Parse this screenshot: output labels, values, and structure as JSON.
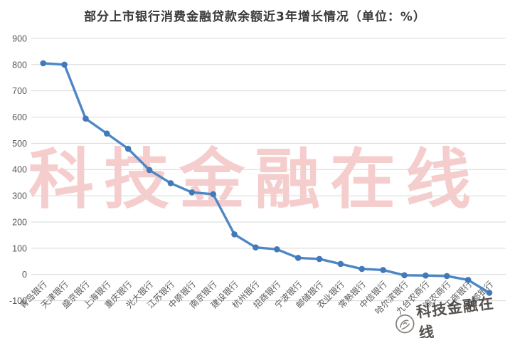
{
  "chart_data": {
    "type": "line",
    "title": "部分上市银行消费金融贷款余额近3年增长情况（单位：%）",
    "categories": [
      "青岛银行",
      "天津银行",
      "盛京银行",
      "上海银行",
      "重庆银行",
      "光大银行",
      "江苏银行",
      "中原银行",
      "南京银行",
      "建设银行",
      "杭州银行",
      "招商银行",
      "宁波银行",
      "邮储银行",
      "农业银行",
      "常熟银行",
      "中信银行",
      "哈尔滨银行",
      "九台农商行",
      "渝农商行",
      "工商银行",
      "成都银行"
    ],
    "values": [
      805,
      800,
      594,
      537,
      479,
      398,
      348,
      313,
      306,
      153,
      103,
      96,
      63,
      59,
      40,
      21,
      17,
      -3,
      -4,
      -6,
      -21,
      -70
    ],
    "xlabel": "",
    "ylabel": "",
    "ylim": [
      -100,
      900
    ],
    "ytick_interval": 100,
    "yticks": [
      "900",
      "800",
      "700",
      "600",
      "500",
      "400",
      "300",
      "200",
      "100",
      "0",
      "-100"
    ],
    "grid": true,
    "legend_position": "none",
    "line_color": "#4c87c6",
    "marker_color": "#4379b8",
    "gridline_color": "#d9d9d9",
    "axis_text_color": "#595959",
    "title_color": "#3a3a3a",
    "x_label_rotation_deg": -45
  },
  "watermarks": {
    "center_text": "科技金融在线",
    "center_color": "#e26a6a",
    "corner_text": "科技金融在线",
    "corner_color": "#393432",
    "corner_logo": "hand-in-circle-logo"
  }
}
